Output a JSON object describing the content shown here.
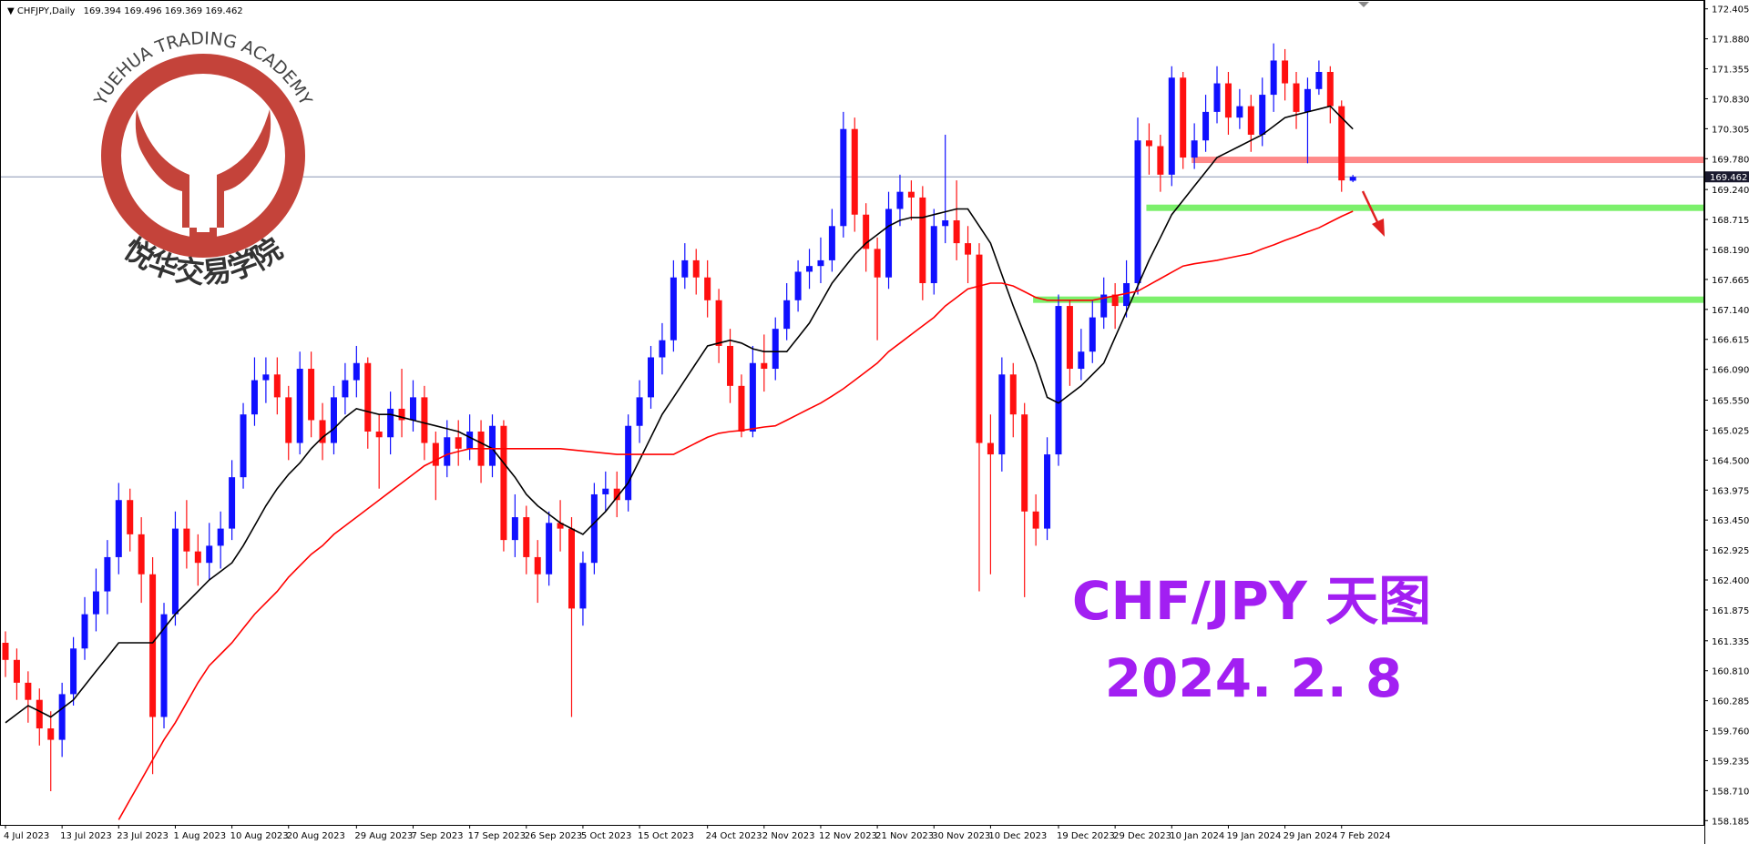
{
  "chart_data": {
    "type": "candlestick",
    "symbol": "CHFJPY,Daily",
    "categories": [
      "4 Jul 2023",
      null,
      null,
      null,
      null,
      "13 Jul 2023",
      null,
      null,
      null,
      null,
      "23 Jul 2023",
      null,
      null,
      null,
      null,
      "1 Aug 2023",
      null,
      null,
      null,
      null,
      "10 Aug 2023",
      null,
      null,
      null,
      null,
      "20 Aug 2023",
      null,
      null,
      null,
      null,
      null,
      "29 Aug 2023",
      null,
      null,
      null,
      null,
      "7 Sep 2023",
      null,
      null,
      null,
      null,
      "17 Sep 2023",
      null,
      null,
      null,
      null,
      "26 Sep 2023",
      null,
      null,
      null,
      null,
      "5 Oct 2023",
      null,
      null,
      null,
      null,
      "15 Oct 2023",
      null,
      null,
      null,
      null,
      null,
      "24 Oct 2023",
      null,
      null,
      null,
      null,
      "2 Nov 2023",
      null,
      null,
      null,
      null,
      "12 Nov 2023",
      null,
      null,
      null,
      null,
      "21 Nov 2023",
      null,
      null,
      null,
      null,
      "30 Nov 2023",
      null,
      null,
      null,
      null,
      "10 Dec 2023",
      null,
      null,
      null,
      null,
      null,
      "19 Dec 2023",
      null,
      null,
      null,
      null,
      "29 Dec 2023",
      null,
      null,
      null,
      null,
      "10 Jan 2024",
      null,
      null,
      null,
      null,
      "19 Jan 2024",
      null,
      null,
      null,
      null,
      "29 Jan 2024",
      null,
      null,
      null,
      null,
      "7 Feb 2024",
      null
    ],
    "open": [
      161.3,
      161.0,
      160.6,
      160.3,
      159.8,
      159.6,
      160.4,
      161.2,
      161.8,
      162.2,
      162.8,
      163.8,
      163.2,
      162.5,
      160.0,
      161.8,
      163.3,
      162.9,
      162.7,
      163.0,
      163.3,
      164.2,
      165.3,
      165.9,
      166.0,
      165.6,
      164.8,
      166.1,
      165.2,
      164.8,
      165.6,
      165.9,
      166.2,
      165.0,
      164.9,
      165.4,
      165.2,
      165.6,
      164.8,
      164.4,
      164.9,
      164.7,
      165.0,
      164.4,
      165.1,
      163.1,
      163.5,
      162.8,
      162.5,
      163.4,
      163.3,
      161.9,
      162.7,
      163.9,
      164.0,
      163.8,
      165.1,
      165.6,
      166.3,
      166.6,
      167.7,
      168.0,
      167.7,
      167.3,
      166.5,
      165.8,
      165.0,
      166.2,
      166.1,
      166.8,
      167.3,
      167.8,
      167.9,
      168.0,
      168.6,
      170.3,
      168.8,
      168.2,
      167.7,
      168.9,
      169.2,
      169.1,
      167.6,
      168.6,
      168.7,
      168.3,
      168.1,
      164.8,
      164.6,
      166.0,
      165.3,
      163.6,
      163.3,
      164.6,
      167.2,
      166.1,
      166.4,
      167.0,
      167.4,
      167.2,
      167.6,
      170.1,
      170.0,
      169.5,
      171.2,
      169.8,
      170.1,
      170.6,
      171.1,
      170.5,
      170.7,
      170.2,
      170.9,
      171.5,
      171.1,
      170.6,
      171.0,
      171.3,
      170.7,
      169.394
    ],
    "high": [
      161.5,
      161.2,
      160.8,
      160.5,
      160.1,
      160.6,
      161.4,
      162.1,
      162.6,
      163.1,
      164.1,
      164.0,
      163.5,
      162.8,
      162.0,
      163.6,
      163.8,
      163.2,
      163.4,
      163.6,
      164.5,
      165.5,
      166.3,
      166.3,
      166.3,
      165.8,
      166.4,
      166.4,
      165.5,
      165.8,
      166.2,
      166.5,
      166.3,
      165.3,
      165.7,
      166.1,
      165.9,
      165.8,
      165.0,
      165.2,
      165.2,
      165.3,
      165.2,
      165.3,
      165.2,
      163.9,
      163.7,
      163.1,
      163.6,
      163.8,
      163.5,
      162.9,
      164.1,
      164.3,
      164.3,
      165.3,
      165.9,
      166.5,
      166.9,
      168.0,
      168.3,
      168.2,
      168.0,
      167.5,
      166.8,
      166.0,
      166.5,
      166.7,
      167.0,
      167.6,
      168.0,
      168.2,
      168.4,
      168.9,
      170.6,
      170.5,
      169.0,
      168.4,
      169.2,
      169.5,
      169.4,
      169.3,
      168.9,
      170.2,
      169.4,
      168.6,
      168.3,
      165.3,
      166.3,
      166.2,
      165.5,
      163.9,
      164.9,
      167.4,
      167.3,
      166.8,
      167.3,
      167.7,
      167.6,
      168.0,
      170.5,
      170.4,
      170.2,
      171.4,
      171.3,
      170.4,
      170.9,
      171.4,
      171.3,
      171.0,
      170.9,
      171.2,
      171.8,
      171.7,
      171.3,
      171.2,
      171.5,
      171.4,
      170.8,
      169.496
    ],
    "low": [
      160.7,
      160.3,
      159.9,
      159.5,
      158.7,
      159.3,
      160.2,
      161.0,
      161.5,
      161.8,
      162.5,
      162.9,
      162.0,
      159.0,
      159.8,
      161.6,
      162.6,
      162.3,
      162.4,
      162.6,
      163.1,
      164.0,
      165.1,
      165.5,
      165.3,
      164.5,
      164.6,
      164.9,
      164.5,
      164.6,
      165.3,
      165.6,
      164.7,
      164.0,
      164.6,
      164.9,
      165.0,
      164.5,
      163.8,
      164.2,
      164.4,
      164.5,
      164.1,
      164.2,
      162.9,
      162.8,
      162.5,
      162.0,
      162.3,
      162.9,
      160.0,
      161.6,
      162.5,
      163.6,
      163.5,
      163.6,
      164.8,
      165.4,
      166.0,
      166.4,
      167.5,
      167.4,
      167.0,
      166.2,
      165.5,
      164.9,
      164.9,
      165.7,
      165.9,
      166.6,
      167.1,
      167.5,
      167.6,
      167.8,
      168.4,
      168.5,
      167.8,
      166.6,
      167.5,
      168.6,
      168.7,
      167.3,
      167.4,
      168.3,
      168.0,
      167.6,
      162.2,
      162.5,
      164.3,
      164.9,
      162.1,
      163.0,
      163.1,
      164.4,
      165.8,
      165.9,
      166.2,
      166.8,
      166.8,
      167.0,
      167.4,
      169.5,
      169.2,
      169.3,
      169.6,
      169.6,
      169.9,
      170.4,
      170.2,
      170.3,
      169.9,
      170.0,
      170.6,
      170.8,
      170.3,
      169.7,
      170.9,
      170.4,
      169.2,
      169.369
    ],
    "close": [
      161.0,
      160.6,
      160.3,
      159.8,
      159.6,
      160.4,
      161.2,
      161.8,
      162.2,
      162.8,
      163.8,
      163.2,
      162.5,
      160.0,
      161.8,
      163.3,
      162.9,
      162.7,
      163.0,
      163.3,
      164.2,
      165.3,
      165.9,
      166.0,
      165.6,
      164.8,
      166.1,
      165.2,
      164.8,
      165.6,
      165.9,
      166.2,
      165.0,
      164.9,
      165.4,
      165.2,
      165.6,
      164.8,
      164.4,
      164.9,
      164.7,
      165.0,
      164.4,
      165.1,
      163.1,
      163.5,
      162.8,
      162.5,
      163.4,
      163.3,
      161.9,
      162.7,
      163.9,
      164.0,
      163.8,
      165.1,
      165.6,
      166.3,
      166.6,
      167.7,
      168.0,
      167.7,
      167.3,
      166.5,
      165.8,
      165.0,
      166.2,
      166.1,
      166.8,
      167.3,
      167.8,
      167.9,
      168.0,
      168.6,
      170.3,
      168.8,
      168.2,
      167.7,
      168.9,
      169.2,
      169.1,
      167.6,
      168.6,
      168.7,
      168.3,
      168.1,
      164.8,
      164.6,
      166.0,
      165.3,
      163.6,
      163.3,
      164.6,
      167.2,
      166.1,
      166.4,
      167.0,
      167.4,
      167.2,
      167.6,
      170.1,
      170.0,
      169.5,
      171.2,
      169.8,
      170.1,
      170.6,
      171.1,
      170.5,
      170.7,
      170.2,
      170.9,
      171.5,
      171.1,
      170.6,
      171.0,
      171.3,
      170.7,
      169.4,
      169.462
    ],
    "up_color": "#1010ff",
    "down_color": "#ff1010",
    "moving_averages": [
      {
        "color": "#000000",
        "values": [
          159.9,
          160.05,
          160.2,
          160.1,
          160.0,
          160.15,
          160.3,
          160.55,
          160.8,
          161.05,
          161.3,
          161.3,
          161.3,
          161.3,
          161.55,
          161.8,
          162.0,
          162.2,
          162.4,
          162.55,
          162.7,
          163.0,
          163.35,
          163.7,
          164.0,
          164.25,
          164.45,
          164.7,
          164.9,
          165.05,
          165.25,
          165.4,
          165.35,
          165.3,
          165.3,
          165.25,
          165.2,
          165.15,
          165.1,
          165.05,
          165.0,
          164.9,
          164.8,
          164.7,
          164.45,
          164.2,
          163.9,
          163.7,
          163.55,
          163.4,
          163.3,
          163.2,
          163.4,
          163.6,
          163.85,
          164.1,
          164.5,
          164.9,
          165.3,
          165.6,
          165.9,
          166.2,
          166.5,
          166.55,
          166.6,
          166.55,
          166.45,
          166.4,
          166.4,
          166.4,
          166.65,
          166.9,
          167.25,
          167.6,
          167.85,
          168.1,
          168.3,
          168.45,
          168.6,
          168.7,
          168.75,
          168.75,
          168.8,
          168.85,
          168.9,
          168.9,
          168.6,
          168.3,
          167.75,
          167.2,
          166.7,
          166.2,
          165.6,
          165.5,
          165.65,
          165.8,
          166.0,
          166.2,
          166.65,
          167.1,
          167.55,
          168.0,
          168.4,
          168.8,
          169.05,
          169.3,
          169.55,
          169.8,
          169.9,
          170.0,
          170.1,
          170.2,
          170.35,
          170.5,
          170.55,
          170.6,
          170.65,
          170.7,
          170.5,
          170.3
        ]
      },
      {
        "color": "#ff0000",
        "values": [
          null,
          null,
          null,
          null,
          null,
          null,
          null,
          null,
          null,
          null,
          158.2,
          158.55,
          158.9,
          159.25,
          159.6,
          159.9,
          160.25,
          160.6,
          160.9,
          161.1,
          161.3,
          161.55,
          161.8,
          162.0,
          162.2,
          162.45,
          162.65,
          162.85,
          163.0,
          163.2,
          163.35,
          163.5,
          163.65,
          163.8,
          163.95,
          164.1,
          164.25,
          164.4,
          164.5,
          164.6,
          164.65,
          164.7,
          164.7,
          164.7,
          164.7,
          164.7,
          164.7,
          164.7,
          164.7,
          164.7,
          164.68,
          164.66,
          164.64,
          164.62,
          164.6,
          164.6,
          164.6,
          164.6,
          164.6,
          164.6,
          164.7,
          164.8,
          164.9,
          164.97,
          165.0,
          165.02,
          165.05,
          165.08,
          165.1,
          165.2,
          165.3,
          165.4,
          165.5,
          165.62,
          165.75,
          165.9,
          166.05,
          166.2,
          166.4,
          166.55,
          166.7,
          166.85,
          167.0,
          167.2,
          167.35,
          167.5,
          167.55,
          167.6,
          167.6,
          167.55,
          167.45,
          167.35,
          167.3,
          167.3,
          167.3,
          167.3,
          167.3,
          167.34,
          167.38,
          167.42,
          167.46,
          167.57,
          167.68,
          167.79,
          167.9,
          167.94,
          167.97,
          168.0,
          168.04,
          168.08,
          168.12,
          168.2,
          168.27,
          168.35,
          168.42,
          168.5,
          168.57,
          168.67,
          168.77,
          168.86
        ]
      }
    ],
    "levels": [
      {
        "value": 169.76,
        "color": "#ff8a8a",
        "start": 105
      },
      {
        "value": 168.92,
        "color": "#7cf06c",
        "start": 101
      },
      {
        "value": 167.31,
        "color": "#7cf06c",
        "start": 91
      }
    ],
    "price_line_color": "#8896b4",
    "ylim": [
      158.11,
      172.56
    ],
    "yticks": [
      172.405,
      {
        "value": 171.88,
        "label": "171.880"
      },
      171.355,
      {
        "value": 170.83,
        "label": "170.830"
      },
      170.305,
      {
        "value": 169.78,
        "label": "169.780"
      },
      {
        "value": 169.24,
        "label": "169.240"
      },
      168.715,
      {
        "value": 168.19,
        "label": "168.190"
      },
      167.665,
      {
        "value": 167.14,
        "label": "167.140"
      },
      166.615,
      {
        "value": 166.09,
        "label": "166.090"
      },
      {
        "value": 165.55,
        "label": "165.550"
      },
      165.025,
      {
        "value": 164.5,
        "label": "164.500"
      },
      163.975,
      {
        "value": 163.45,
        "label": "163.450"
      },
      162.925,
      {
        "value": 162.4,
        "label": "162.400"
      },
      161.875,
      161.335,
      {
        "value": 160.81,
        "label": "160.810"
      },
      160.285,
      {
        "value": 159.76,
        "label": "159.760"
      },
      159.235,
      {
        "value": 158.71,
        "label": "158.710"
      },
      158.185
    ],
    "annotations": [
      "CHF/JPY 天图",
      "2024. 2. 8"
    ],
    "annotation_color": "#a21ff2"
  },
  "logo": {
    "arc_text": "YUEHUA TRADING ACADEMY",
    "chinese": "悦华交易学院"
  }
}
